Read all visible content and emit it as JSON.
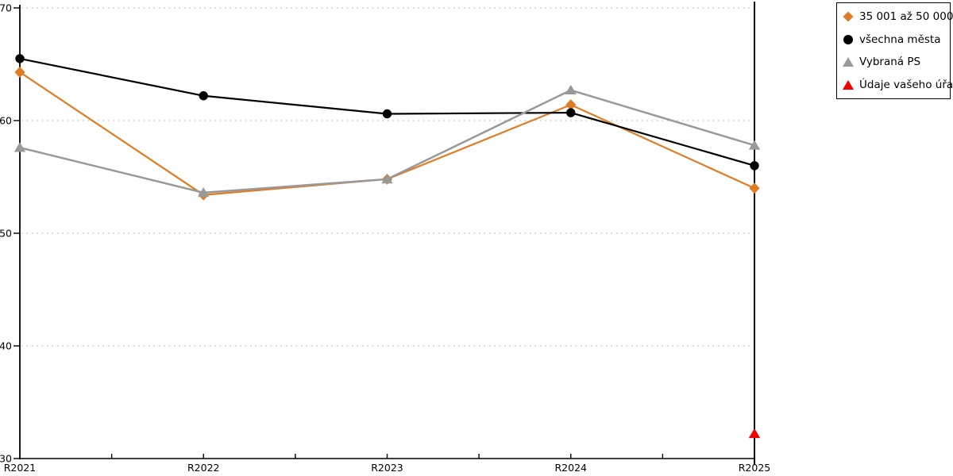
{
  "chart_data": {
    "type": "line",
    "title": "",
    "xlabel": "",
    "ylabel": "",
    "categories": [
      "R2021",
      "R2022",
      "R2023",
      "R2024",
      "R2025"
    ],
    "series": [
      {
        "name": "35 001 až 50 000",
        "color": "#E07C24",
        "marker": "diamond",
        "line": true,
        "values": [
          64.3,
          53.4,
          54.8,
          61.4,
          54.0
        ]
      },
      {
        "name": "všechna města",
        "color": "#000000",
        "marker": "circle",
        "line": true,
        "values": [
          65.5,
          62.2,
          60.6,
          60.7,
          56.0
        ]
      },
      {
        "name": "Vybraná PS",
        "color": "#999999",
        "marker": "triangle",
        "line": true,
        "values": [
          57.6,
          53.6,
          54.8,
          62.7,
          57.8
        ]
      },
      {
        "name": "Údaje vašeho úřadu",
        "color": "#F20000",
        "marker": "triangle",
        "line": false,
        "values": [
          null,
          null,
          null,
          null,
          32.2
        ]
      }
    ],
    "ylim": [
      30,
      70
    ],
    "yticks": [
      30,
      40,
      50,
      60,
      70
    ],
    "grid": "horizontal-dotted",
    "legend_position": "top-right"
  },
  "colors": {
    "grid": "#BFBFBF",
    "axis": "#000000",
    "background": "#FFFFFF",
    "text": "#000000"
  }
}
